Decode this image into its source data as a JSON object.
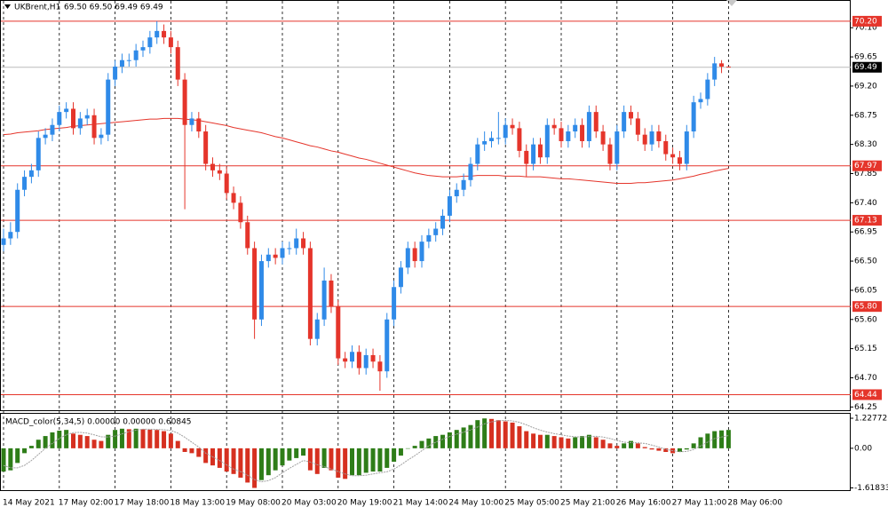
{
  "symbol": "UKBrent,H1",
  "quote": "69.50 69.50 69.49 69.49",
  "chart_data": [
    {
      "type": "candlestick",
      "categories": [
        "14 May 2021",
        null,
        null,
        null,
        null,
        null,
        null,
        null,
        "17 May 02:00",
        null,
        null,
        null,
        null,
        null,
        null,
        null,
        "17 May 18:00",
        null,
        null,
        null,
        null,
        null,
        null,
        null,
        "18 May 13:00",
        null,
        null,
        null,
        null,
        null,
        null,
        null,
        "19 May 08:00",
        null,
        null,
        null,
        null,
        null,
        null,
        null,
        "20 May 03:00",
        null,
        null,
        null,
        null,
        null,
        null,
        null,
        "20 May 19:00",
        null,
        null,
        null,
        null,
        null,
        null,
        null,
        "21 May 14:00",
        null,
        null,
        null,
        null,
        null,
        null,
        null,
        "24 May 10:00",
        null,
        null,
        null,
        null,
        null,
        null,
        null,
        "25 May 05:00",
        null,
        null,
        null,
        null,
        null,
        null,
        null,
        "25 May 21:00",
        null,
        null,
        null,
        null,
        null,
        null,
        null,
        "26 May 16:00",
        null,
        null,
        null,
        null,
        null,
        null,
        null,
        "27 May 11:00",
        null,
        null,
        null,
        null,
        null,
        null,
        null,
        "28 May 06:00"
      ],
      "open": [
        66.75,
        66.85,
        66.95,
        67.6,
        67.8,
        67.9,
        68.4,
        68.45,
        68.6,
        68.8,
        68.85,
        68.55,
        68.7,
        68.75,
        68.4,
        68.45,
        69.3,
        69.5,
        69.6,
        69.6,
        69.75,
        69.8,
        69.95,
        70.05,
        69.95,
        69.8,
        69.3,
        68.6,
        68.7,
        68.5,
        68.0,
        67.9,
        67.85,
        67.55,
        67.4,
        67.1,
        66.7,
        65.6,
        66.5,
        66.6,
        66.55,
        66.7,
        66.7,
        66.85,
        66.7,
        65.3,
        65.6,
        66.2,
        65.8,
        65.0,
        64.95,
        65.1,
        64.85,
        65.05,
        64.95,
        64.8,
        65.6,
        66.1,
        66.4,
        66.7,
        66.5,
        66.8,
        66.9,
        67.0,
        67.2,
        67.5,
        67.6,
        67.75,
        68.0,
        68.3,
        68.35,
        68.4,
        68.4,
        68.6,
        68.55,
        68.2,
        68.0,
        68.3,
        68.1,
        68.6,
        68.55,
        68.35,
        68.5,
        68.6,
        68.35,
        68.8,
        68.5,
        68.3,
        68.0,
        68.5,
        68.8,
        68.7,
        68.45,
        68.3,
        68.5,
        68.35,
        68.15,
        68.1,
        68.0,
        68.5,
        68.95,
        69.0,
        69.3,
        69.55,
        69.5
      ],
      "high": [
        67.0,
        67.1,
        67.7,
        67.9,
        68.0,
        68.5,
        68.55,
        68.7,
        68.9,
        68.95,
        68.95,
        68.8,
        68.85,
        68.85,
        68.55,
        69.4,
        69.6,
        69.7,
        69.7,
        69.85,
        69.9,
        70.05,
        70.2,
        70.15,
        70.05,
        69.9,
        69.4,
        68.8,
        68.8,
        68.6,
        68.1,
        68.0,
        67.95,
        67.65,
        67.5,
        67.2,
        66.8,
        66.6,
        66.7,
        66.7,
        66.8,
        66.8,
        67.0,
        66.95,
        66.8,
        65.7,
        66.4,
        66.3,
        65.9,
        65.1,
        65.2,
        65.2,
        65.15,
        65.15,
        65.05,
        65.7,
        66.2,
        66.5,
        66.8,
        66.8,
        66.9,
        67.0,
        67.1,
        67.3,
        67.6,
        67.7,
        67.85,
        68.1,
        68.4,
        68.5,
        68.5,
        68.8,
        68.7,
        68.7,
        68.65,
        68.3,
        68.4,
        68.4,
        68.7,
        68.7,
        68.65,
        68.6,
        68.7,
        68.7,
        68.9,
        68.9,
        68.6,
        68.4,
        68.6,
        68.9,
        68.9,
        68.8,
        68.55,
        68.6,
        68.6,
        68.45,
        68.25,
        68.2,
        68.6,
        69.05,
        69.1,
        69.4,
        69.65,
        69.6,
        69.5
      ],
      "low": [
        66.65,
        66.75,
        66.85,
        67.5,
        67.7,
        67.8,
        68.3,
        68.35,
        68.5,
        68.7,
        68.45,
        68.45,
        68.6,
        68.3,
        68.3,
        68.35,
        69.2,
        69.4,
        69.5,
        69.5,
        69.65,
        69.7,
        69.85,
        69.85,
        69.7,
        69.2,
        67.3,
        68.5,
        68.4,
        67.9,
        67.8,
        67.75,
        67.45,
        67.3,
        67.0,
        66.6,
        65.3,
        65.5,
        66.4,
        66.45,
        66.45,
        66.6,
        66.6,
        66.6,
        65.2,
        65.2,
        65.5,
        65.7,
        64.9,
        64.85,
        64.85,
        64.75,
        64.75,
        64.85,
        64.5,
        64.7,
        65.5,
        66.0,
        66.3,
        66.4,
        66.4,
        66.7,
        66.8,
        66.9,
        67.1,
        67.4,
        67.5,
        67.65,
        67.9,
        68.2,
        68.25,
        68.3,
        68.3,
        68.45,
        68.1,
        67.8,
        67.9,
        68.0,
        68.0,
        68.45,
        68.25,
        68.25,
        68.4,
        68.25,
        68.25,
        68.4,
        68.2,
        67.9,
        67.9,
        68.4,
        68.6,
        68.35,
        68.2,
        68.2,
        68.25,
        68.05,
        68.0,
        67.9,
        67.9,
        68.4,
        68.85,
        68.9,
        69.2,
        69.4,
        69.49
      ],
      "close": [
        66.85,
        66.95,
        67.6,
        67.8,
        67.9,
        68.4,
        68.45,
        68.6,
        68.8,
        68.85,
        68.55,
        68.7,
        68.75,
        68.4,
        68.45,
        69.3,
        69.5,
        69.6,
        69.6,
        69.75,
        69.8,
        69.95,
        70.05,
        69.95,
        69.8,
        69.3,
        68.6,
        68.7,
        68.5,
        68.0,
        67.9,
        67.85,
        67.55,
        67.4,
        67.1,
        66.7,
        65.6,
        66.5,
        66.6,
        66.55,
        66.7,
        66.7,
        66.85,
        66.7,
        65.3,
        65.6,
        66.2,
        65.8,
        65.0,
        64.95,
        65.1,
        64.85,
        65.05,
        64.95,
        64.8,
        65.6,
        66.1,
        66.4,
        66.7,
        66.5,
        66.8,
        66.9,
        67.0,
        67.2,
        67.5,
        67.6,
        67.75,
        68.0,
        68.3,
        68.35,
        68.4,
        68.4,
        68.6,
        68.55,
        68.2,
        68.0,
        68.3,
        68.1,
        68.6,
        68.55,
        68.35,
        68.5,
        68.6,
        68.35,
        68.8,
        68.5,
        68.3,
        68.0,
        68.5,
        68.8,
        68.7,
        68.45,
        68.3,
        68.5,
        68.35,
        68.15,
        68.1,
        68.0,
        68.5,
        68.95,
        69.0,
        69.3,
        69.55,
        69.5,
        69.49
      ],
      "up_color": "#2f8ae8",
      "down_color": "#e5352b",
      "series": [
        {
          "color": "#e5352b",
          "values": [
            68.45,
            68.46,
            68.48,
            68.49,
            68.5,
            68.51,
            68.53,
            68.54,
            68.55,
            68.56,
            68.58,
            68.59,
            68.6,
            68.61,
            68.62,
            68.63,
            68.64,
            68.65,
            68.66,
            68.67,
            68.68,
            68.69,
            68.69,
            68.7,
            68.7,
            68.7,
            68.69,
            68.68,
            68.67,
            68.65,
            68.63,
            68.61,
            68.59,
            68.56,
            68.54,
            68.52,
            68.5,
            68.48,
            68.45,
            68.42,
            68.4,
            68.37,
            68.34,
            68.31,
            68.28,
            68.26,
            68.23,
            68.2,
            68.18,
            68.15,
            68.12,
            68.09,
            68.07,
            68.04,
            68.01,
            67.98,
            67.95,
            67.92,
            67.89,
            67.86,
            67.84,
            67.82,
            67.81,
            67.8,
            67.8,
            67.8,
            67.81,
            67.81,
            67.82,
            67.82,
            67.82,
            67.82,
            67.81,
            67.81,
            67.81,
            67.8,
            67.8,
            67.8,
            67.79,
            67.78,
            67.77,
            67.77,
            67.76,
            67.75,
            67.74,
            67.73,
            67.72,
            67.71,
            67.7,
            67.7,
            67.7,
            67.71,
            67.71,
            67.72,
            67.73,
            67.74,
            67.75,
            67.77,
            67.79,
            67.81,
            67.84,
            67.86,
            67.89,
            67.91,
            67.93
          ]
        }
      ],
      "levels": {
        "color": "#e5352b",
        "values": [
          {
            "value": 70.2,
            "label": "70.20"
          },
          {
            "value": 67.97,
            "label": "67.97"
          },
          {
            "value": 67.13,
            "label": "67.13"
          },
          {
            "value": 65.8,
            "label": "65.80"
          },
          {
            "value": 64.44,
            "label": "64.44"
          }
        ]
      },
      "last_price": 69.49,
      "ylim": [
        64.2,
        70.5
      ],
      "yticks": [
        {
          "value": 70.1,
          "label": "70.10"
        },
        69.65,
        {
          "value": 69.2,
          "label": "69.20"
        },
        68.75,
        {
          "value": 68.3,
          "label": "68.30"
        },
        67.85,
        {
          "value": 67.4,
          "label": "67.40"
        },
        66.95,
        {
          "value": 66.5,
          "label": "66.50"
        },
        66.05,
        {
          "value": 65.6,
          "label": "65.60"
        },
        65.15,
        {
          "value": 64.7,
          "label": "64.70"
        },
        64.25
      ],
      "grid": true
    },
    {
      "type": "macd",
      "title": "MACD_color(5,34,5) 0.00000 0.00000 0.60845",
      "values": [
        -0.95,
        -0.9,
        -0.6,
        -0.2,
        0.1,
        0.35,
        0.5,
        0.65,
        0.72,
        0.75,
        0.6,
        0.55,
        0.5,
        0.35,
        0.3,
        0.55,
        0.75,
        0.8,
        0.78,
        0.8,
        0.78,
        0.76,
        0.75,
        0.7,
        0.6,
        0.3,
        -0.15,
        -0.2,
        -0.35,
        -0.6,
        -0.7,
        -0.8,
        -0.95,
        -1.05,
        -1.2,
        -1.4,
        -1.62,
        -1.3,
        -1.1,
        -0.9,
        -0.7,
        -0.5,
        -0.4,
        -0.3,
        -0.9,
        -1.05,
        -0.8,
        -0.9,
        -1.2,
        -1.25,
        -1.1,
        -1.1,
        -1.0,
        -0.95,
        -0.95,
        -0.8,
        -0.55,
        -0.3,
        0.0,
        0.1,
        0.3,
        0.4,
        0.5,
        0.55,
        0.65,
        0.75,
        0.85,
        0.95,
        1.15,
        1.22,
        1.2,
        1.15,
        1.1,
        1.05,
        0.9,
        0.7,
        0.6,
        0.55,
        0.55,
        0.5,
        0.45,
        0.4,
        0.45,
        0.5,
        0.55,
        0.45,
        0.35,
        0.2,
        0.1,
        0.2,
        0.3,
        0.2,
        0.05,
        -0.05,
        -0.1,
        -0.15,
        -0.2,
        -0.15,
        -0.05,
        0.2,
        0.45,
        0.6,
        0.7,
        0.73,
        0.75
      ],
      "up_color": "#2e7d18",
      "down_color": "#d63020",
      "signal": {
        "color": "#a0a0a0",
        "values": [
          -0.7,
          -0.8,
          -0.8,
          -0.7,
          -0.5,
          -0.25,
          0.0,
          0.2,
          0.4,
          0.55,
          0.64,
          0.65,
          0.62,
          0.55,
          0.47,
          0.46,
          0.5,
          0.59,
          0.68,
          0.74,
          0.78,
          0.78,
          0.77,
          0.76,
          0.73,
          0.62,
          0.45,
          0.25,
          0.05,
          -0.2,
          -0.35,
          -0.5,
          -0.68,
          -0.85,
          -0.95,
          -1.1,
          -1.28,
          -1.37,
          -1.32,
          -1.2,
          -1.0,
          -0.82,
          -0.66,
          -0.5,
          -0.56,
          -0.67,
          -0.75,
          -0.85,
          -0.95,
          -1.05,
          -1.12,
          -1.12,
          -1.1,
          -1.05,
          -1.0,
          -0.96,
          -0.85,
          -0.68,
          -0.48,
          -0.3,
          -0.1,
          0.1,
          0.25,
          0.37,
          0.48,
          0.58,
          0.66,
          0.75,
          0.87,
          1.0,
          1.08,
          1.13,
          1.14,
          1.12,
          1.06,
          0.96,
          0.84,
          0.74,
          0.66,
          0.6,
          0.55,
          0.5,
          0.47,
          0.46,
          0.48,
          0.49,
          0.46,
          0.4,
          0.32,
          0.25,
          0.23,
          0.22,
          0.2,
          0.13,
          0.05,
          -0.04,
          -0.1,
          -0.14,
          -0.13,
          -0.05,
          0.1,
          0.25,
          0.4,
          0.46,
          0.52
        ]
      },
      "ylim": [
        -1.71,
        1.41
      ],
      "yticks": [
        1.22772,
        {
          "value": 0,
          "label": "0.00"
        },
        -1.61833
      ]
    }
  ]
}
